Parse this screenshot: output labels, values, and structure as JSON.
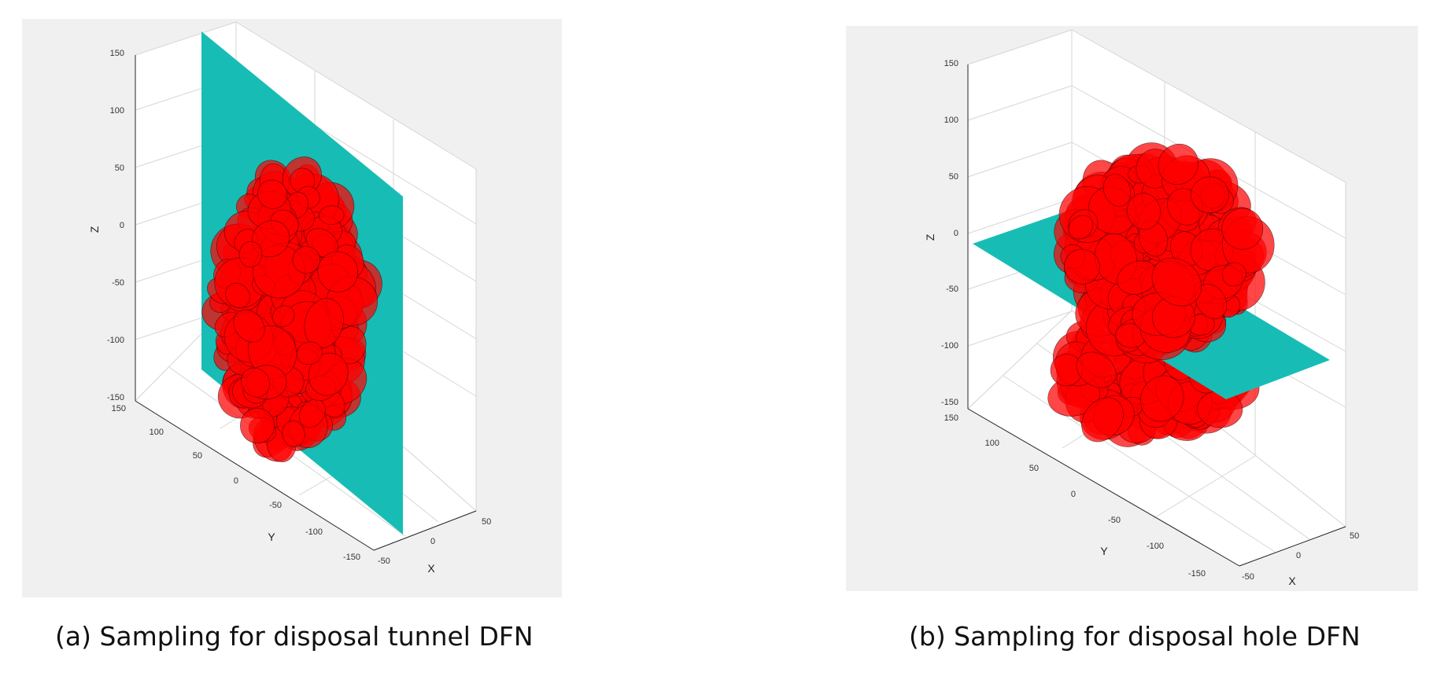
{
  "panels": [
    {
      "id": "a",
      "caption": "(a) Sampling for disposal tunnel DFN",
      "axes": {
        "z_label": "Z",
        "y_label": "Y",
        "x_label": "X",
        "z_ticks": [
          "150",
          "100",
          "50",
          "0",
          "-50",
          "-100",
          "-150"
        ],
        "y_ticks": [
          "150",
          "100",
          "50",
          "0",
          "-50",
          "-100",
          "-150"
        ],
        "x_ticks": [
          "-50",
          "0",
          "50"
        ]
      },
      "plane": {
        "orientation": "vertical",
        "color": "#17bdb5"
      },
      "fractures": {
        "color": "#ff0000",
        "edge_color": "#000000"
      }
    },
    {
      "id": "b",
      "caption": "(b) Sampling for disposal hole DFN",
      "axes": {
        "z_label": "Z",
        "y_label": "Y",
        "x_label": "X",
        "z_ticks": [
          "150",
          "100",
          "50",
          "0",
          "-50",
          "-100",
          "-150"
        ],
        "y_ticks": [
          "150",
          "100",
          "50",
          "0",
          "-50",
          "-100",
          "-150"
        ],
        "x_ticks": [
          "-50",
          "0",
          "50"
        ]
      },
      "plane": {
        "orientation": "horizontal",
        "color": "#17bdb5"
      },
      "fractures": {
        "color": "#ff0000",
        "edge_color": "#000000"
      }
    }
  ]
}
